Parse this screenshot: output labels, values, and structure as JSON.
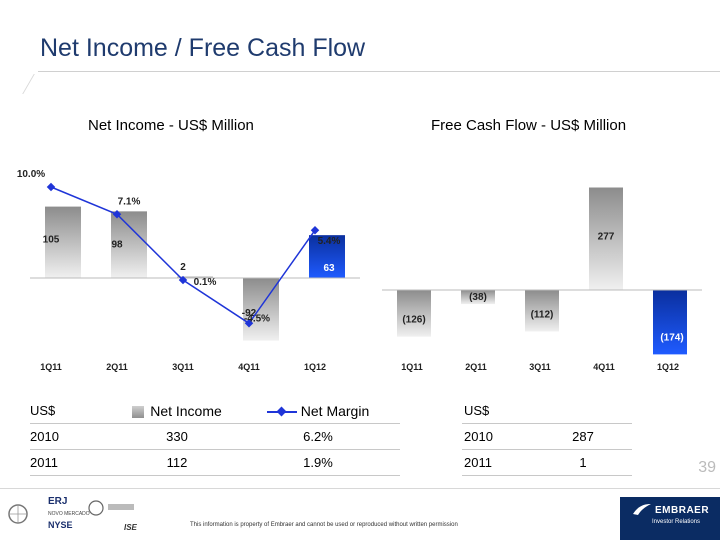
{
  "slide": {
    "title": "Net Income / Free Cash Flow",
    "number": "39",
    "footer_note": "This information is property of Embraer and cannot be used or reproduced without written permission",
    "company": "EMBRAER",
    "company_sub": "Investor Relations",
    "logo_labels": [
      "ERJ",
      "NOVO MERCADO",
      "NYSE",
      "ISE"
    ]
  },
  "chart_data": [
    {
      "type": "bar",
      "title": "Net Income - US$ Million",
      "categories": [
        "1Q11",
        "2Q11",
        "3Q11",
        "4Q11",
        "1Q12"
      ],
      "series": [
        {
          "name": "Net Income",
          "type": "bar",
          "values": [
            105,
            98,
            2,
            -92,
            63
          ],
          "labels": [
            "105",
            "98",
            "2",
            "-92",
            "63"
          ]
        },
        {
          "name": "Net Margin",
          "type": "line",
          "values": [
            10.0,
            7.1,
            0.1,
            -4.5,
            5.4
          ],
          "labels": [
            "10.0%",
            "7.1%",
            "0.1%",
            "-4.5%",
            "5.4%"
          ]
        }
      ],
      "highlight_category": "1Q12",
      "colors": {
        "bar": "#a8a8a8",
        "highlight": "#0a37b8",
        "line": "#1f35d8"
      }
    },
    {
      "type": "bar",
      "title": "Free Cash Flow - US$ Million",
      "categories": [
        "1Q11",
        "2Q11",
        "3Q11",
        "4Q11",
        "1Q12"
      ],
      "series": [
        {
          "name": "Free Cash Flow",
          "values": [
            -126,
            -38,
            -112,
            277,
            -174
          ],
          "labels": [
            "(126)",
            "(38)",
            "(112)",
            "277",
            "(174)"
          ]
        }
      ],
      "highlight_category": "1Q12",
      "colors": {
        "bar": "#a8a8a8",
        "highlight": "#0a37b8"
      }
    }
  ],
  "net_income_table": {
    "header": {
      "unit": "US$",
      "col1": "Net Income",
      "col2": "Net Margin"
    },
    "rows": [
      {
        "year": "2010",
        "net_income": "330",
        "net_margin": "6.2%"
      },
      {
        "year": "2011",
        "net_income": "112",
        "net_margin": "1.9%"
      }
    ]
  },
  "fcf_table": {
    "header": {
      "unit": "US$"
    },
    "rows": [
      {
        "year": "2010",
        "value": "287"
      },
      {
        "year": "2011",
        "value": "1"
      }
    ]
  }
}
